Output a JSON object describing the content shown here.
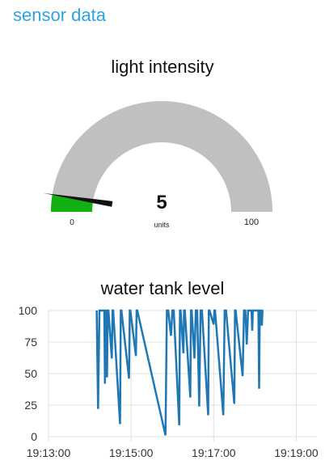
{
  "app": {
    "title": "sensor data"
  },
  "gauge": {
    "title": "light intensity",
    "value": 5,
    "value_text": "5",
    "units": "units",
    "min": 0,
    "max": 100,
    "min_label": "0",
    "max_label": "100",
    "track_color": "#c0c0c0",
    "fill_color": "#12b112",
    "needle_color": "#111111"
  },
  "chart_data": {
    "type": "line",
    "title": "water tank level",
    "xlabel": "",
    "ylabel": "",
    "ylim": [
      0,
      100
    ],
    "xlim": [
      "19:13:00",
      "19:19:30"
    ],
    "y_ticks": [
      "0",
      "25",
      "50",
      "75",
      "100"
    ],
    "x_ticks": [
      "19:13:00",
      "19:15:00",
      "19:17:00",
      "19:19:00"
    ],
    "grid": true,
    "line_color": "#1f77b4",
    "series": [
      {
        "x": [
          "19:14:10",
          "19:14:12",
          "19:14:14",
          "19:14:21",
          "19:14:22",
          "19:14:23",
          "19:14:24",
          "19:14:25",
          "19:14:26",
          "19:14:27",
          "19:14:32",
          "19:14:33",
          "19:14:34",
          "19:14:44",
          "19:14:45",
          "19:14:46",
          "19:14:57",
          "19:14:58",
          "19:14:59",
          "19:15:07",
          "19:15:08",
          "19:15:09",
          "19:15:50",
          "19:15:52",
          "19:15:54",
          "19:15:58",
          "19:16:00",
          "19:16:02",
          "19:16:10",
          "19:16:11",
          "19:16:12",
          "19:16:16",
          "19:16:17",
          "19:16:18",
          "19:16:26",
          "19:16:27",
          "19:16:28",
          "19:16:32",
          "19:16:34",
          "19:16:36",
          "19:16:39",
          "19:16:41",
          "19:16:43",
          "19:16:52",
          "19:16:53",
          "19:16:54",
          "19:17:00",
          "19:17:01",
          "19:17:02",
          "19:17:14",
          "19:17:16",
          "19:17:18",
          "19:17:30",
          "19:17:31",
          "19:17:32",
          "19:17:42",
          "19:17:44",
          "19:17:46",
          "19:17:48",
          "19:17:50",
          "19:17:55",
          "19:17:56",
          "19:17:57",
          "19:18:05",
          "19:18:06",
          "19:18:07",
          "19:18:08",
          "19:18:10",
          "19:18:11",
          "19:18:12"
        ],
        "values": [
          100,
          22,
          100,
          100,
          42,
          100,
          100,
          47,
          100,
          100,
          62,
          100,
          100,
          10,
          100,
          100,
          46,
          100,
          100,
          64,
          100,
          100,
          1,
          100,
          100,
          80,
          100,
          100,
          9,
          100,
          100,
          66,
          100,
          100,
          31,
          100,
          100,
          62,
          100,
          100,
          24,
          100,
          100,
          17,
          100,
          100,
          89,
          100,
          100,
          17,
          100,
          100,
          26,
          100,
          100,
          48,
          100,
          100,
          73,
          100,
          100,
          84,
          100,
          100,
          38,
          100,
          100,
          88,
          100,
          100
        ]
      }
    ]
  }
}
